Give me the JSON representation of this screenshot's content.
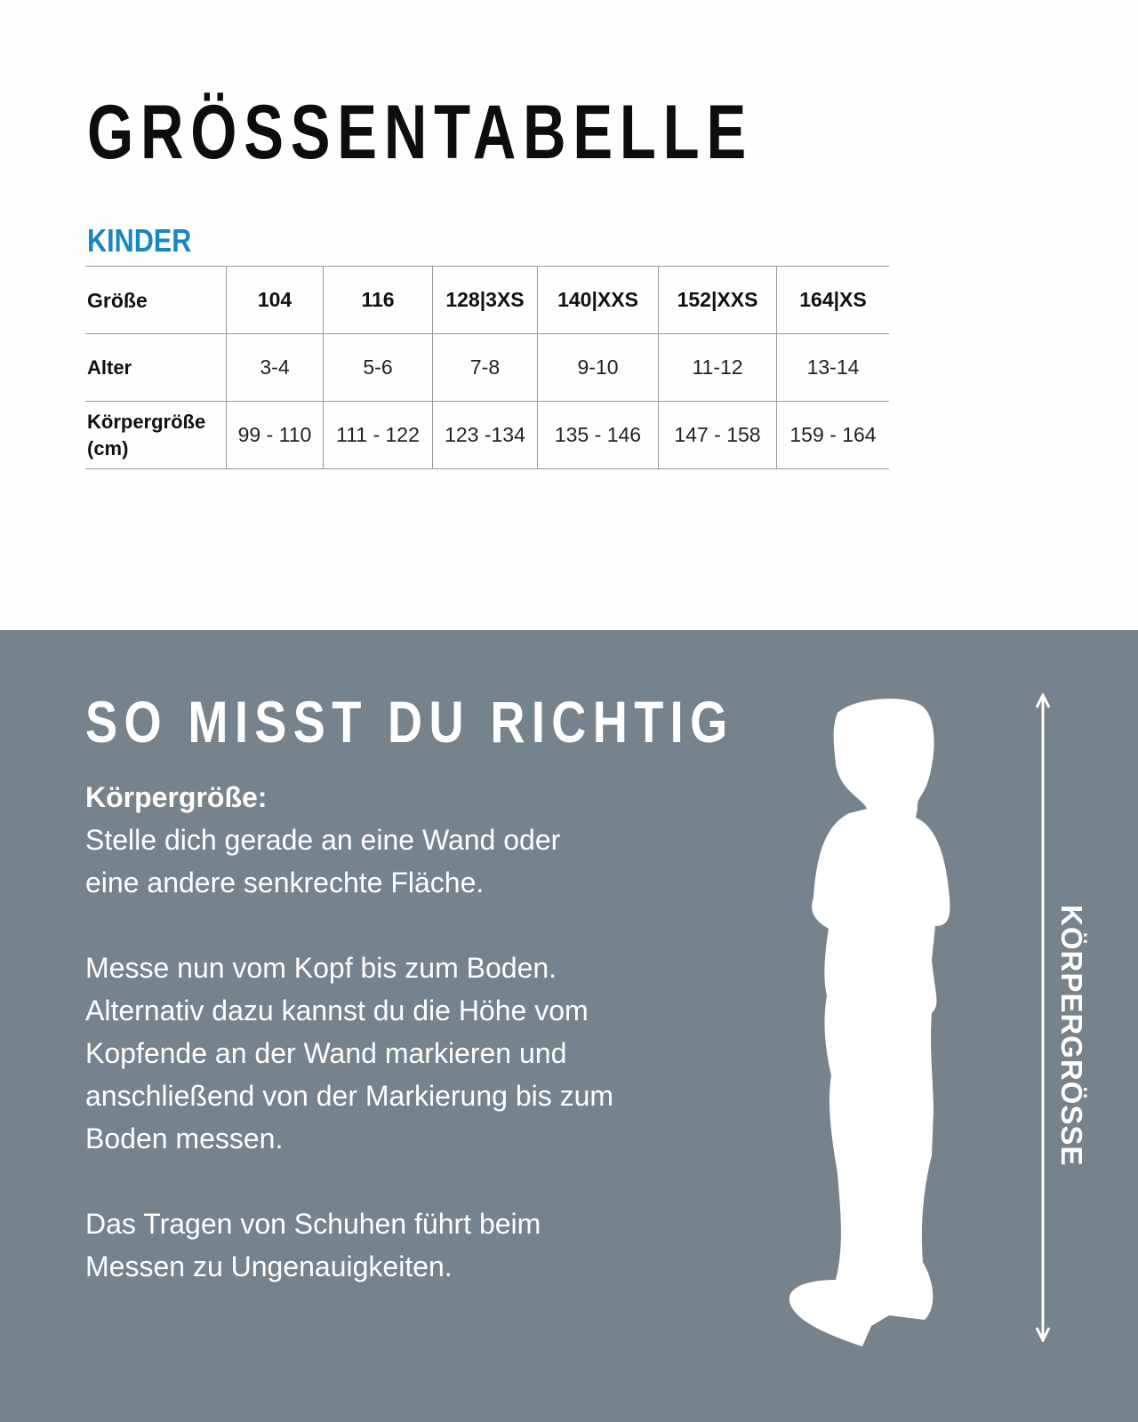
{
  "title": "GRÖSSENTABELLE",
  "section": "KINDER",
  "accent_color": "#1a86c0",
  "table": {
    "rows": [
      {
        "label": "Größe",
        "cells": [
          "104",
          "116",
          "128|3XS",
          "140|XXS",
          "152|XXS",
          "164|XS"
        ]
      },
      {
        "label": "Alter",
        "cells": [
          "3-4",
          "5-6",
          "7-8",
          "9-10",
          "11-12",
          "13-14"
        ]
      },
      {
        "label": "Körpergröße (cm)",
        "cells": [
          "99 - 110",
          "111 - 122",
          "123 -134",
          "135 - 146",
          "147 - 158",
          "159 - 164"
        ]
      }
    ]
  },
  "measure": {
    "heading": "SO MISST DU RICHTIG",
    "label": "Körpergröße:",
    "para1": "Stelle dich gerade an eine Wand oder eine andere senkrechte Fläche.",
    "para2": "Messe nun vom Kopf bis zum Boden. Alternativ dazu kannst du die Höhe vom Kopfende an der Wand markieren und anschließend von der Markierung bis zum Boden messen.",
    "para3": "Das Tragen von Schuhen führt beim Messen zu Ungenauigkeiten.",
    "vertical_label": "KÖRPERGRÖSSE",
    "background_color": "#76838c"
  }
}
